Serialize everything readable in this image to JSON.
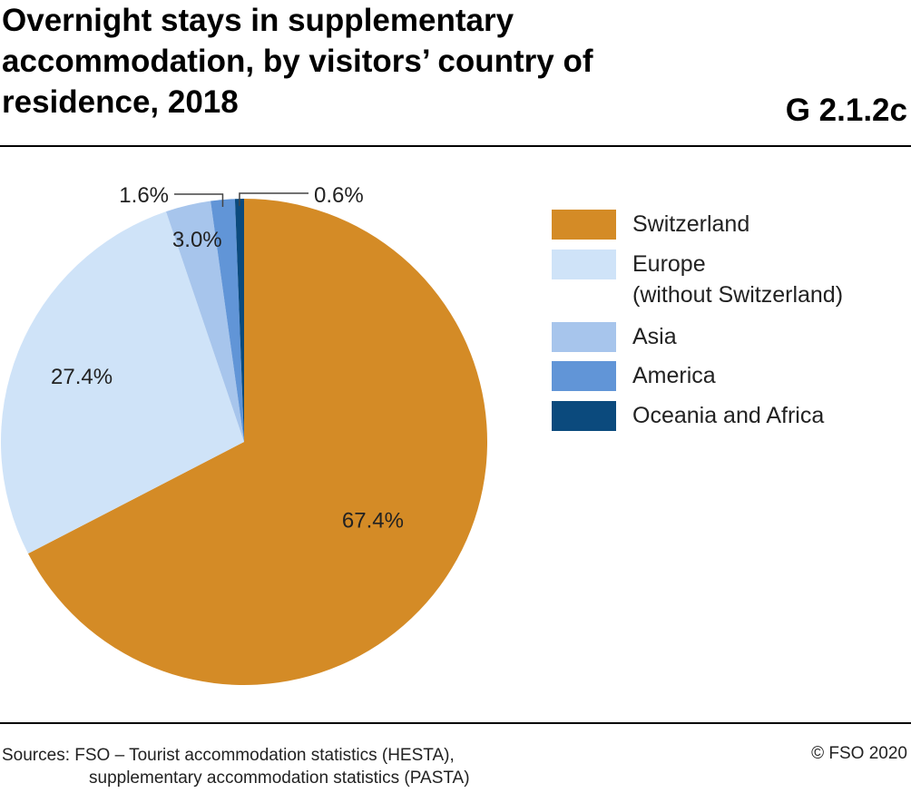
{
  "title": "Overnight stays in supplementary accommodation, by visitors’ country of residence, 2018",
  "chart_code": "G 2.1.2c",
  "chart_data": {
    "type": "pie",
    "title": "Overnight stays in supplementary accommodation, by visitors’ country of residence, 2018",
    "categories": [
      "Switzerland",
      "Europe (without Switzerland)",
      "Asia",
      "America",
      "Oceania and Africa"
    ],
    "values": [
      67.4,
      27.4,
      3.0,
      1.6,
      0.6
    ],
    "labels": [
      "67.4%",
      "27.4%",
      "3.0%",
      "1.6%",
      "0.6%"
    ],
    "colors": [
      "#d48b26",
      "#cfe3f8",
      "#a7c5ec",
      "#6195d7",
      "#0b4a7d"
    ],
    "legend_placement": "right",
    "legend": [
      {
        "line1": "Switzerland"
      },
      {
        "line1": "Europe",
        "line2": "(without Switzerland)"
      },
      {
        "line1": "Asia"
      },
      {
        "line1": "America"
      },
      {
        "line1": "Oceania and Africa"
      }
    ]
  },
  "footer": {
    "sources_line1": "Sources: FSO – Tourist accommodation statistics (HESTA),",
    "sources_line2": "supplementary accommodation statistics (PASTA)",
    "copyright": "© FSO 2020"
  }
}
